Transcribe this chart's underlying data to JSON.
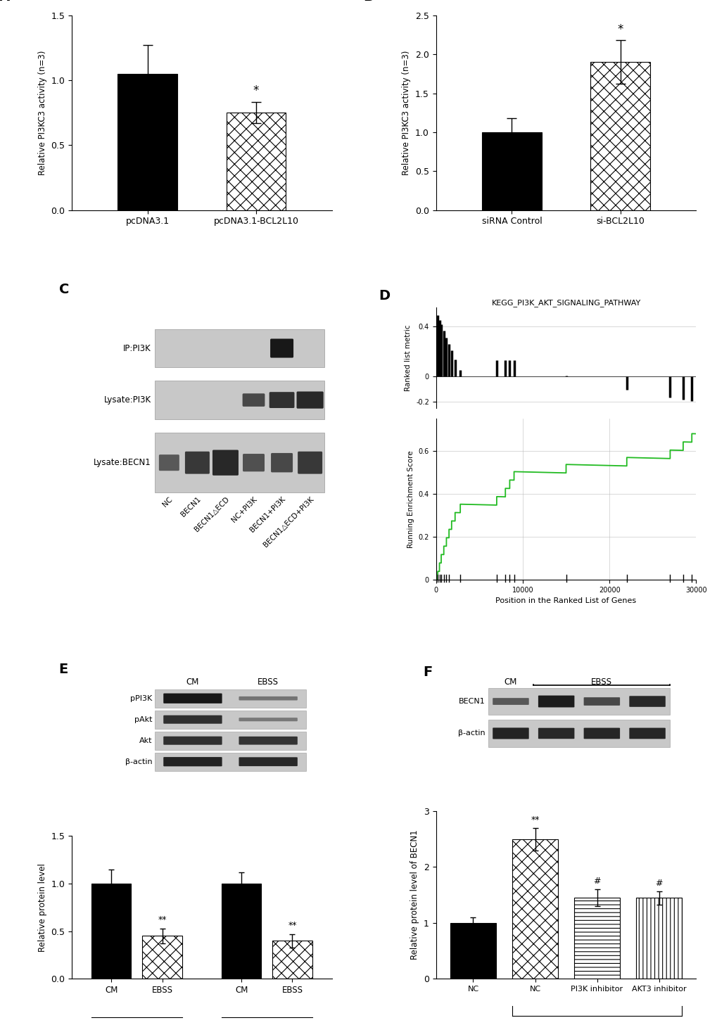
{
  "panel_A": {
    "label": "A",
    "categories": [
      "pcDNA3.1",
      "pcDNA3.1-BCL2L10"
    ],
    "values": [
      1.05,
      0.75
    ],
    "errors": [
      0.22,
      0.08
    ],
    "ylabel": "Relative PI3KC3 activity (n=3)",
    "ylim": [
      0,
      1.5
    ],
    "yticks": [
      0.0,
      0.5,
      1.0,
      1.5
    ],
    "sig": [
      "",
      "*"
    ]
  },
  "panel_B": {
    "label": "B",
    "categories": [
      "siRNA Control",
      "si-BCL2L10"
    ],
    "values": [
      1.0,
      1.9
    ],
    "errors": [
      0.18,
      0.28
    ],
    "ylabel": "Relative PI3KC3 activity (n=3)",
    "ylim": [
      0,
      2.5
    ],
    "yticks": [
      0.0,
      0.5,
      1.0,
      1.5,
      2.0,
      2.5
    ],
    "sig": [
      "",
      "*"
    ]
  },
  "panel_C": {
    "label": "C",
    "row_labels": [
      "IP:PI3K",
      "Lysate:PI3K",
      "Lysate:BECN1"
    ],
    "col_labels": [
      "NC",
      "BECN1",
      "BECN1△ECD",
      "NC+PI3K",
      "BECN1+PI3K",
      "BECN1△ECD+PI3K"
    ]
  },
  "panel_D": {
    "label": "D",
    "title": "KEGG_PI3K_AKT_SIGNALING_PATHWAY",
    "xlabel": "Position in the Ranked List of Genes",
    "ylabel_top": "Ranked list metric",
    "ylabel_bottom": "Running Enrichment Score",
    "xmax": 30000,
    "yticks_top": [
      -0.2,
      0.0,
      0.4
    ],
    "yticks_bottom": [
      0.0,
      0.2,
      0.4,
      0.6
    ]
  },
  "panel_E": {
    "label": "E",
    "group_labels": [
      "pPI3K",
      "pAkt"
    ],
    "values": [
      [
        1.0,
        0.45
      ],
      [
        1.0,
        0.4
      ]
    ],
    "errors": [
      [
        0.15,
        0.08
      ],
      [
        0.12,
        0.07
      ]
    ],
    "ylabel": "Relative protein level",
    "ylim": [
      0,
      1.5
    ],
    "yticks": [
      0.0,
      0.5,
      1.0,
      1.5
    ],
    "sig": [
      [
        "",
        "**"
      ],
      [
        "",
        "**"
      ]
    ],
    "wb_rows": [
      "pPI3K",
      "pAkt",
      "Akt",
      "β-actin"
    ]
  },
  "panel_F": {
    "label": "F",
    "values": [
      1.0,
      2.5,
      1.45,
      1.45
    ],
    "errors": [
      0.1,
      0.2,
      0.15,
      0.12
    ],
    "ylabel": "Relative protein level of BECN1",
    "ylim": [
      0,
      3.0
    ],
    "yticks": [
      0.0,
      1.0,
      2.0,
      3.0
    ],
    "sig": [
      "",
      "**",
      "#",
      "#"
    ],
    "bar_colors": [
      "black",
      "checkerboard",
      "hlines",
      "vlines"
    ],
    "wb_rows": [
      "BECN1",
      "β-actin"
    ],
    "x_labels": [
      "NC",
      "NC",
      "PI3K inhibitor",
      "AKT3 inhibitor"
    ]
  }
}
